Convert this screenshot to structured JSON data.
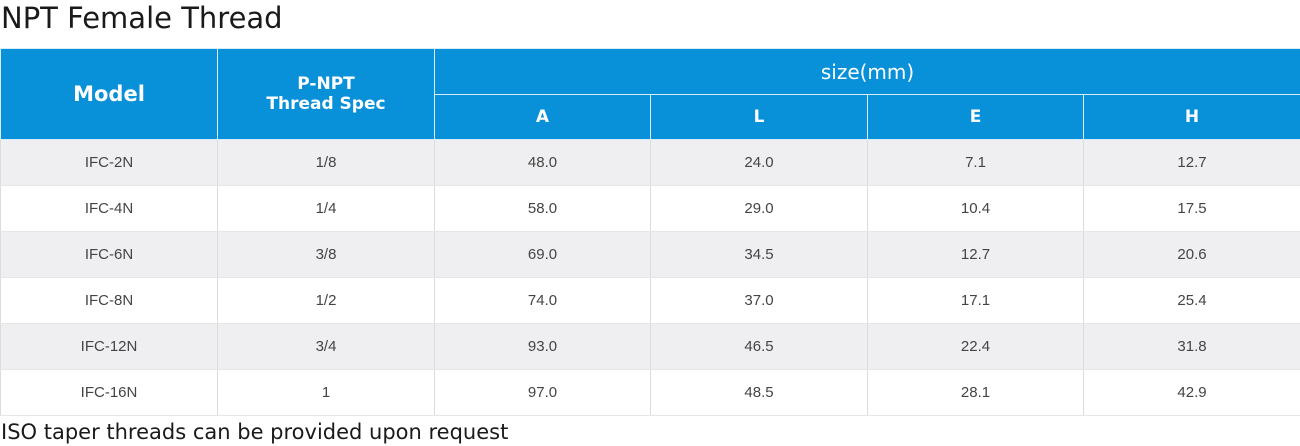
{
  "title": "NPT Female Thread",
  "table": {
    "header": {
      "model": "Model",
      "spec_line1": "P-NPT",
      "spec_line2": "Thread Spec",
      "size_group": "size(mm)",
      "size_columns": [
        "A",
        "L",
        "E",
        "H"
      ]
    },
    "rows": [
      {
        "model": "IFC-2N",
        "spec": "1/8",
        "a": "48.0",
        "l": "24.0",
        "e": "7.1",
        "h": "12.7"
      },
      {
        "model": "IFC-4N",
        "spec": "1/4",
        "a": "58.0",
        "l": "29.0",
        "e": "10.4",
        "h": "17.5"
      },
      {
        "model": "IFC-6N",
        "spec": "3/8",
        "a": "69.0",
        "l": "34.5",
        "e": "12.7",
        "h": "20.6"
      },
      {
        "model": "IFC-8N",
        "spec": "1/2",
        "a": "74.0",
        "l": "37.0",
        "e": "17.1",
        "h": "25.4"
      },
      {
        "model": "IFC-12N",
        "spec": "3/4",
        "a": "93.0",
        "l": "46.5",
        "e": "22.4",
        "h": "31.8"
      },
      {
        "model": "IFC-16N",
        "spec": "1",
        "a": "97.0",
        "l": "48.5",
        "e": "28.1",
        "h": "42.9"
      }
    ]
  },
  "footnote": "ISO taper threads can be provided upon request",
  "colors": {
    "header_bg": "#0890d8",
    "header_text": "#ffffff",
    "row_stripe": "#efeff1",
    "row_plain": "#ffffff"
  }
}
